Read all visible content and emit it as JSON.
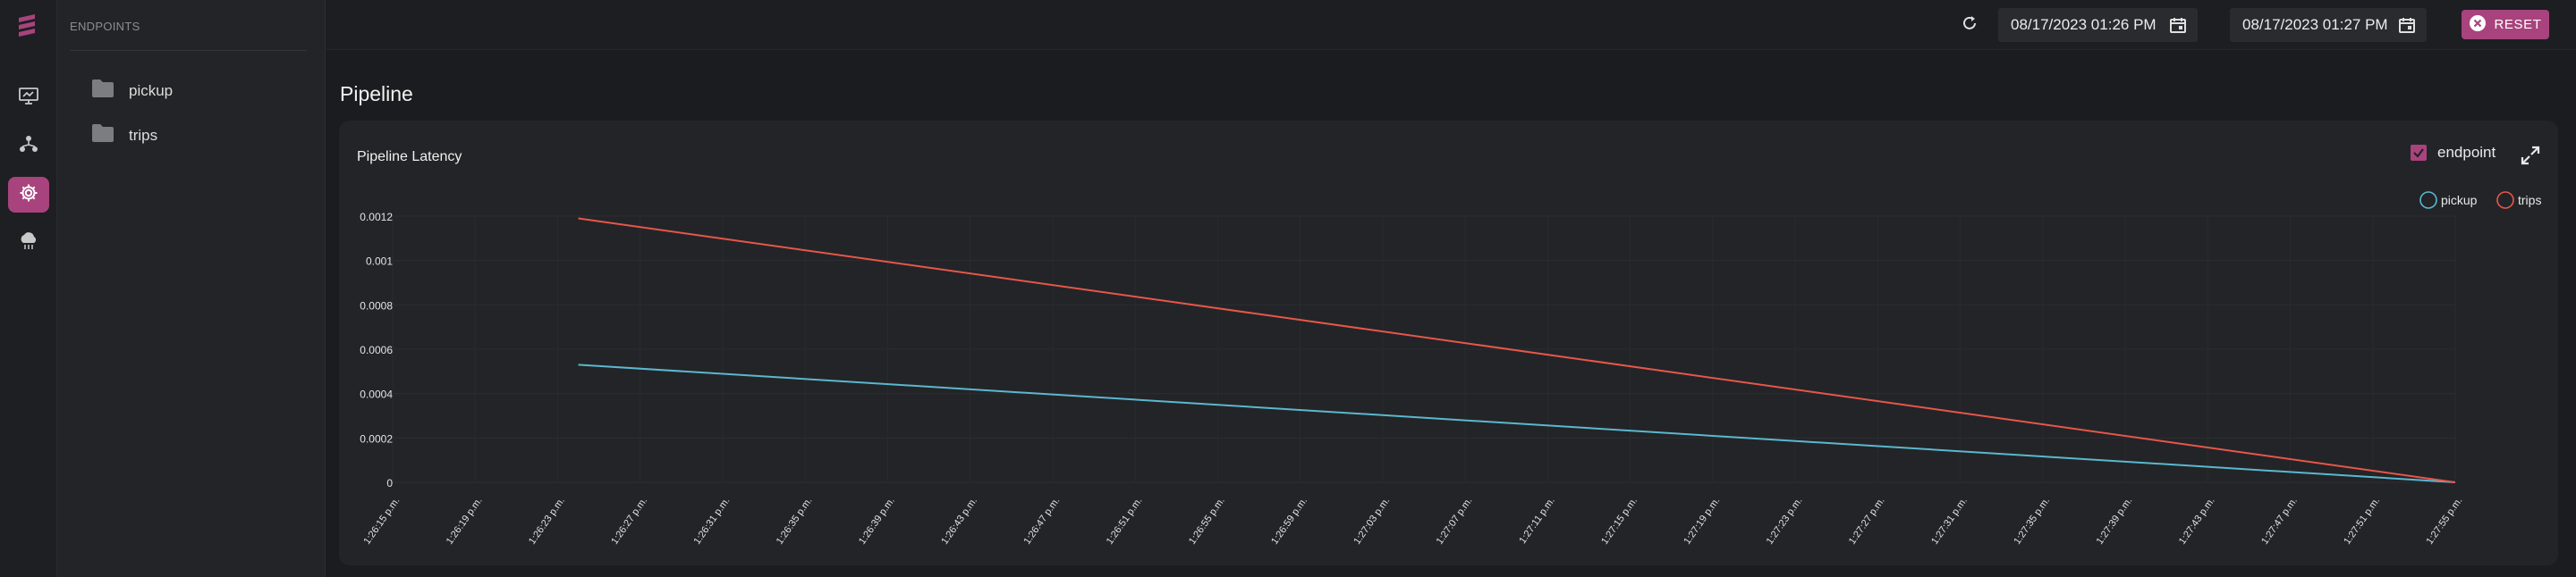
{
  "sidebar": {
    "section_label": "ENDPOINTS",
    "folders": [
      {
        "label": "pickup",
        "icon": "folder-icon"
      },
      {
        "label": "trips",
        "icon": "folder-icon"
      }
    ]
  },
  "rail": {
    "items": [
      {
        "icon": "monitor-icon"
      },
      {
        "icon": "network-icon"
      },
      {
        "icon": "gear-icon",
        "active": true
      },
      {
        "icon": "cloud-icon"
      }
    ]
  },
  "topbar": {
    "start_date": "08/17/2023 01:26 PM",
    "end_date": "08/17/2023 01:27 PM",
    "reset_label": "RESET"
  },
  "main": {
    "page_title": "Pipeline",
    "card_title": "Pipeline Latency",
    "toggle_label": "endpoint",
    "toggle_checked": true
  },
  "colors": {
    "accent": "#a8437d",
    "pickup": "#5ab8d0",
    "trips": "#e5574a"
  },
  "chart_data": {
    "type": "line",
    "title": "Pipeline Latency",
    "x": [
      "1:26:15 p.m.",
      "1:26:19 p.m.",
      "1:26:23 p.m.",
      "1:26:27 p.m.",
      "1:26:31 p.m.",
      "1:26:35 p.m.",
      "1:26:39 p.m.",
      "1:26:43 p.m.",
      "1:26:47 p.m.",
      "1:26:51 p.m.",
      "1:26:55 p.m.",
      "1:26:59 p.m.",
      "1:27:03 p.m.",
      "1:27:07 p.m.",
      "1:27:11 p.m.",
      "1:27:15 p.m.",
      "1:27:19 p.m.",
      "1:27:23 p.m.",
      "1:27:27 p.m.",
      "1:27:31 p.m.",
      "1:27:35 p.m.",
      "1:27:39 p.m.",
      "1:27:43 p.m.",
      "1:27:47 p.m.",
      "1:27:51 p.m.",
      "1:27:55 p.m."
    ],
    "y_ticks": [
      "0",
      "0.0002",
      "0.0004",
      "0.0006",
      "0.0008",
      "0.001",
      "0.0012"
    ],
    "ylim": [
      0,
      0.0012
    ],
    "legend_position": "top-right",
    "series": [
      {
        "name": "pickup",
        "points": [
          {
            "x": "1:26:24 p.m.",
            "y": 0.00053
          },
          {
            "x": "1:27:55 p.m.",
            "y": 0
          }
        ]
      },
      {
        "name": "trips",
        "points": [
          {
            "x": "1:26:24 p.m.",
            "y": 0.00119
          },
          {
            "x": "1:27:55 p.m.",
            "y": 0
          }
        ]
      }
    ]
  }
}
